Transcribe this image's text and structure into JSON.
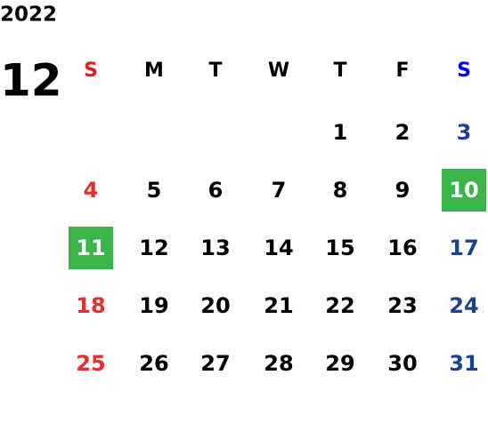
{
  "year": "2022",
  "month": "12",
  "weekdays": [
    "S",
    "M",
    "T",
    "W",
    "T",
    "F",
    "S"
  ],
  "weekday_colors": [
    "#e02020",
    "#000000",
    "#000000",
    "#000000",
    "#000000",
    "#000000",
    "#0000ee"
  ],
  "date_colors": [
    "#e03030",
    "#000000",
    "#000000",
    "#000000",
    "#000000",
    "#000000",
    "#1f3f8f"
  ],
  "weeks": [
    [
      null,
      null,
      null,
      null,
      1,
      2,
      3
    ],
    [
      4,
      5,
      6,
      7,
      8,
      9,
      10
    ],
    [
      11,
      12,
      13,
      14,
      15,
      16,
      17
    ],
    [
      18,
      19,
      20,
      21,
      22,
      23,
      24
    ],
    [
      25,
      26,
      27,
      28,
      29,
      30,
      31
    ]
  ],
  "highlighted": [
    10,
    11
  ],
  "highlight_color": "#3bb54a",
  "highlight_text_color": "#ffffff"
}
